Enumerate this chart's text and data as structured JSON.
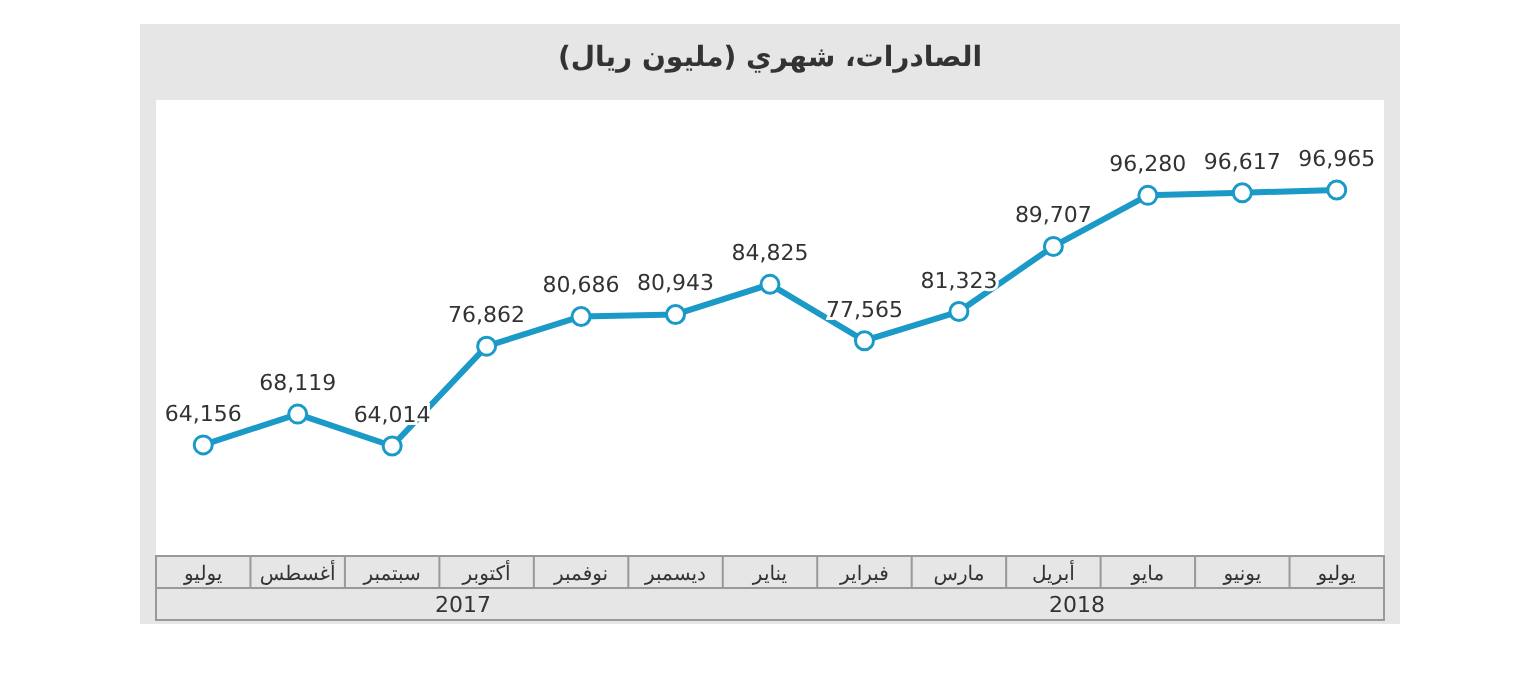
{
  "chart_data": {
    "type": "line",
    "title": "الصادرات، شهري (مليون ريال)",
    "categories": [
      "يوليو",
      "أغسطس",
      "سبتمبر",
      "أكتوبر",
      "نوفمبر",
      "ديسمبر",
      "يناير",
      "فبراير",
      "مارس",
      "أبريل",
      "مايو",
      "يونيو",
      "يوليو"
    ],
    "series": [
      {
        "color": "#1b9ac8",
        "values": [
          64156,
          68119,
          64014,
          76862,
          80686,
          80943,
          84825,
          77565,
          81323,
          89707,
          96280,
          96617,
          96965
        ],
        "value_labels": [
          "64,156",
          "68,119",
          "64,014",
          "76,862",
          "80,686",
          "80,943",
          "84,825",
          "77,565",
          "81,323",
          "89,707",
          "96,280",
          "96,617",
          "96,965"
        ]
      }
    ],
    "marker": "circle",
    "grid": false,
    "annotations": [
      "2017",
      "2018"
    ]
  }
}
